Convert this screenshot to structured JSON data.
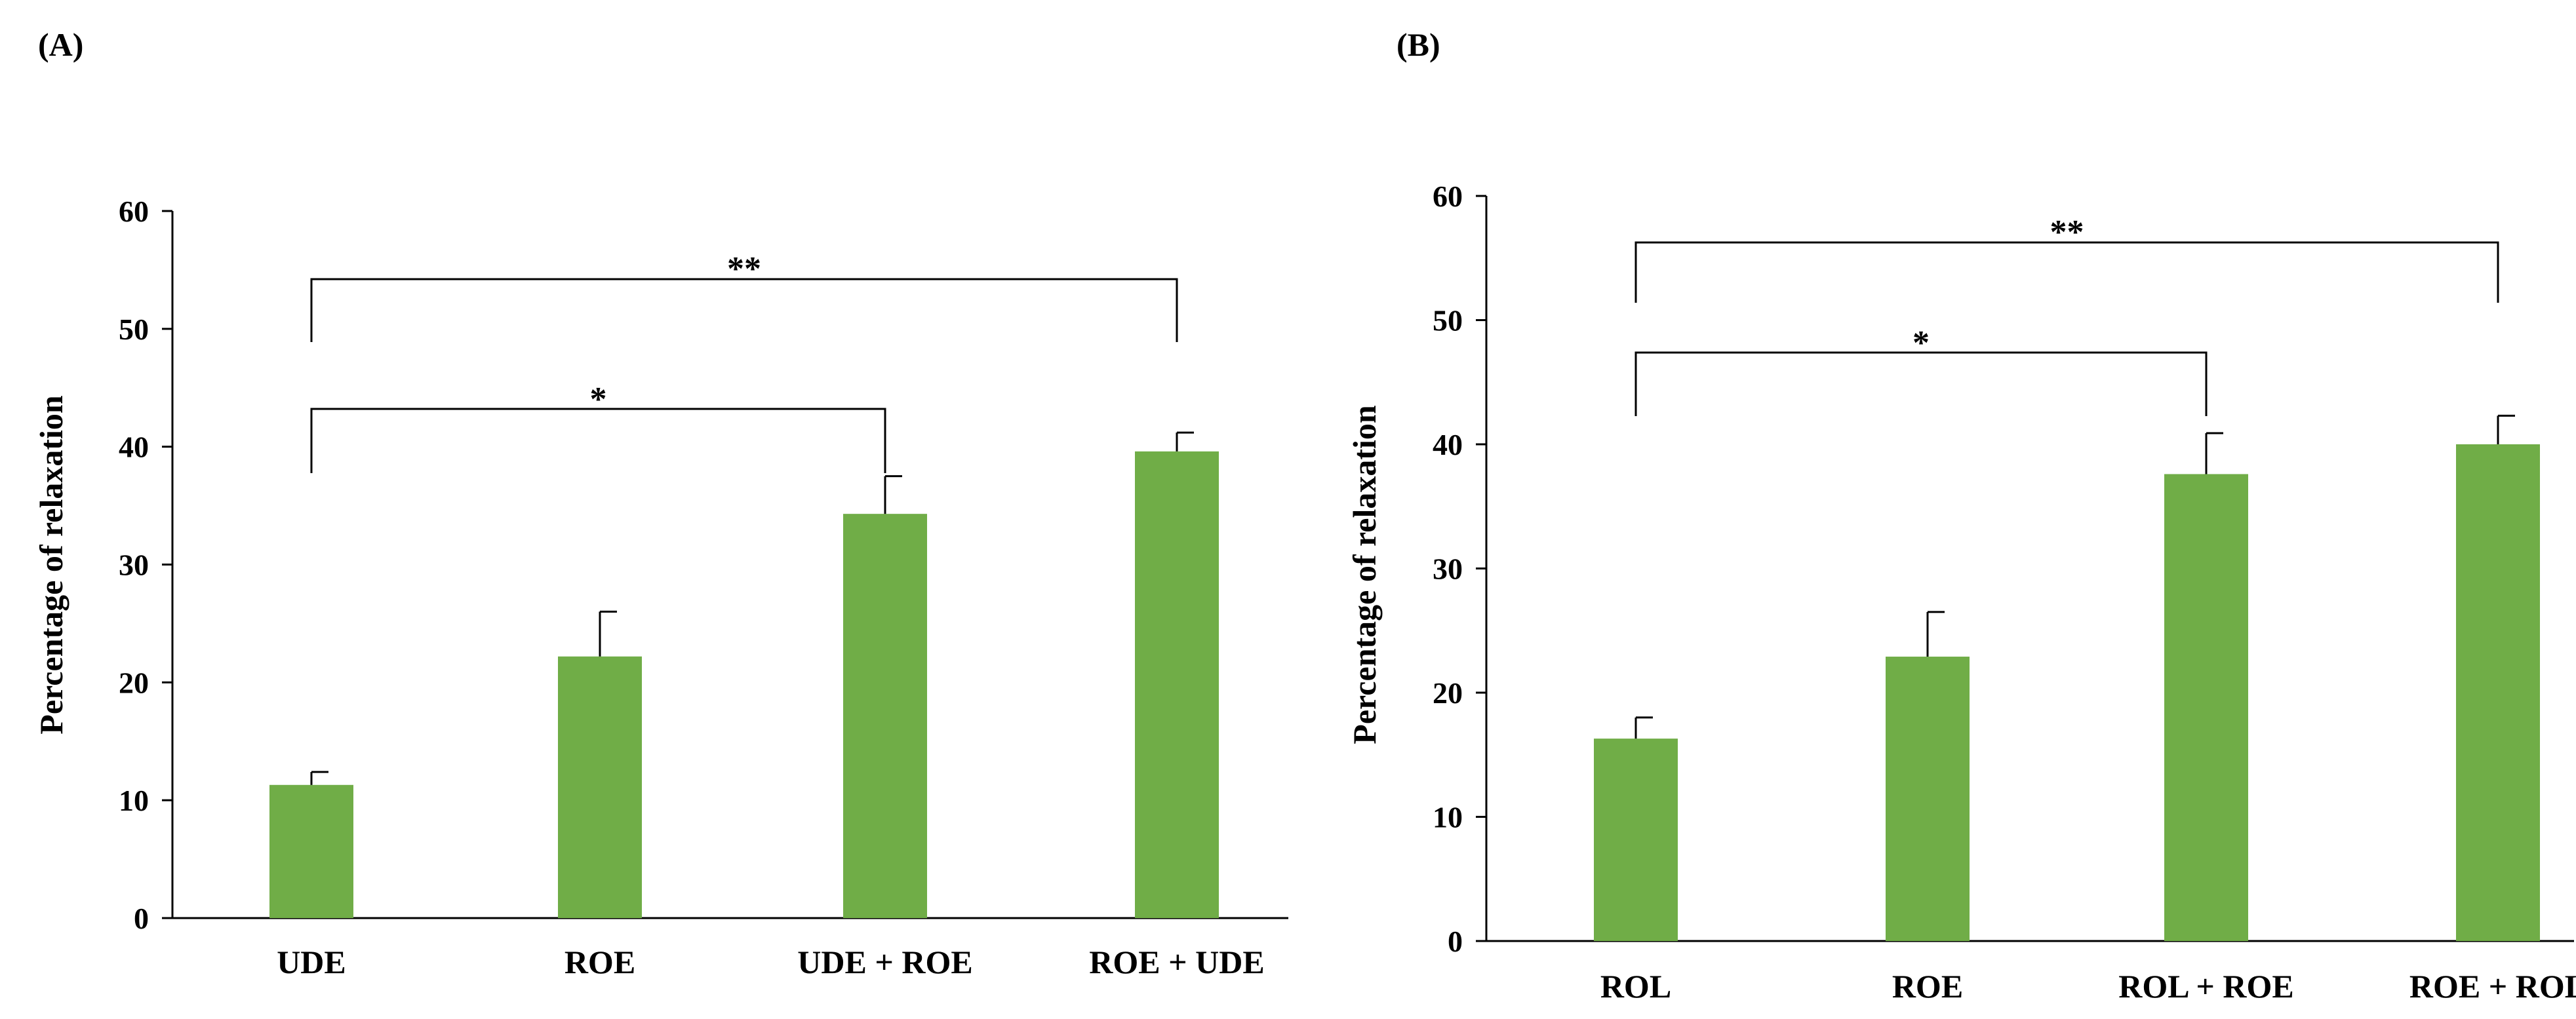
{
  "chart_data": [
    {
      "type": "bar",
      "panel": "(A)",
      "title": "",
      "xlabel": "",
      "ylabel": "Percentage of relaxation",
      "ylim": [
        0,
        60
      ],
      "yticks": [
        0,
        10,
        20,
        30,
        40,
        50,
        60
      ],
      "grid": false,
      "categories": [
        "UDE",
        "ROE",
        "UDE + ROE",
        "ROE + UDE"
      ],
      "values": [
        11.3,
        22.2,
        34.3,
        39.6
      ],
      "errors": [
        1.1,
        3.8,
        3.2,
        1.6
      ],
      "bar_color": "#70AD47",
      "significance": [
        {
          "from": 0,
          "to": 2,
          "label": "*"
        },
        {
          "from": 0,
          "to": 3,
          "label": "**"
        }
      ]
    },
    {
      "type": "bar",
      "panel": "(B)",
      "title": "",
      "xlabel": "",
      "ylabel": "Percentage of relaxation",
      "ylim": [
        0,
        60
      ],
      "yticks": [
        0,
        10,
        20,
        30,
        40,
        50,
        60
      ],
      "grid": false,
      "categories": [
        "ROL",
        "ROE",
        "ROL + ROE",
        "ROE + ROL"
      ],
      "values": [
        16.3,
        22.9,
        37.6,
        40.0
      ],
      "errors": [
        1.7,
        3.6,
        3.3,
        2.3
      ],
      "bar_color": "#70AD47",
      "significance": [
        {
          "from": 0,
          "to": 2,
          "label": "*"
        },
        {
          "from": 0,
          "to": 3,
          "label": "**"
        }
      ]
    }
  ]
}
